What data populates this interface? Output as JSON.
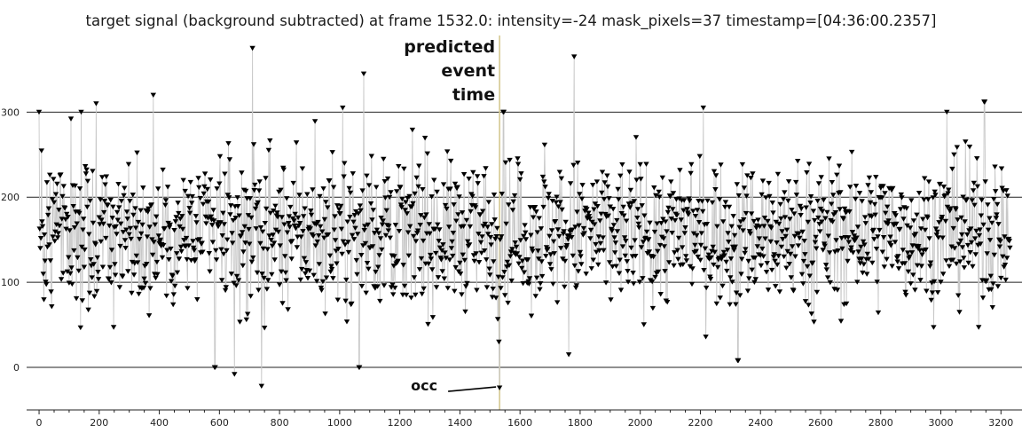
{
  "chart_data": {
    "type": "scatter",
    "title": "target signal (background subtracted) at frame 1532.0: intensity=-24 mask_pixels=37 timestamp=[04:36:00.2357]",
    "xlabel": "",
    "ylabel": "",
    "xlim": [
      -130,
      3270
    ],
    "ylim": [
      -50,
      390
    ],
    "x_ticks": [
      0,
      200,
      400,
      600,
      800,
      1000,
      1200,
      1400,
      1600,
      1800,
      2000,
      2200,
      2400,
      2600,
      2800,
      3000,
      3200
    ],
    "y_ticks": [
      0,
      100,
      200,
      300
    ],
    "y_gridlines": [
      0,
      100,
      200,
      300
    ],
    "marker": "triangle-down",
    "marker_color": "#000000",
    "connector_color": "#c8c8c8",
    "n_frames": 3232,
    "key_points": [
      {
        "x": 0,
        "y": 300
      },
      {
        "x": 140,
        "y": 300
      },
      {
        "x": 190,
        "y": 310
      },
      {
        "x": 380,
        "y": 320
      },
      {
        "x": 585,
        "y": 0
      },
      {
        "x": 650,
        "y": -8
      },
      {
        "x": 710,
        "y": 375
      },
      {
        "x": 740,
        "y": -22
      },
      {
        "x": 1010,
        "y": 305
      },
      {
        "x": 1065,
        "y": 0
      },
      {
        "x": 1080,
        "y": 345
      },
      {
        "x": 1532,
        "y": -24
      },
      {
        "x": 1545,
        "y": 300
      },
      {
        "x": 1780,
        "y": 365
      },
      {
        "x": 2210,
        "y": 305
      },
      {
        "x": 2325,
        "y": 8
      },
      {
        "x": 3020,
        "y": 300
      },
      {
        "x": 3145,
        "y": 312
      }
    ],
    "annotations": {
      "predicted_event_x": 1532,
      "predicted_event_color": "#d4c890",
      "predicted_event_label": [
        "predicted",
        "event",
        "time"
      ],
      "occ_label": "occ",
      "occ_point": {
        "x": 1532,
        "y": -24
      }
    }
  }
}
